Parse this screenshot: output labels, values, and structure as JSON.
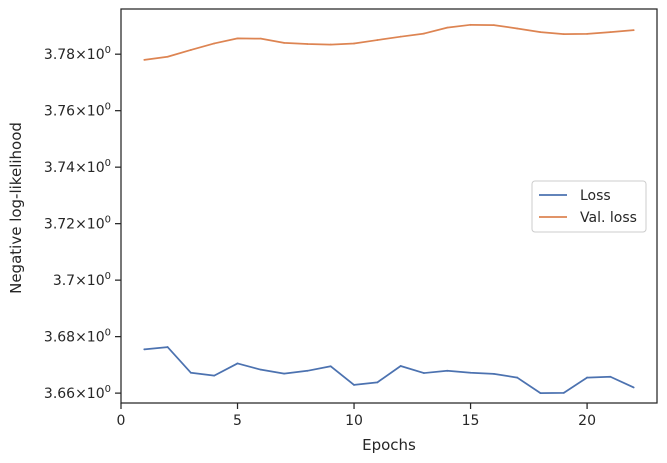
{
  "chart_data": {
    "type": "line",
    "xlabel": "Epochs",
    "ylabel": "Negative log-likelihood",
    "xlim": [
      0,
      23
    ],
    "ylim": [
      3.6565,
      3.796
    ],
    "x_ticks": [
      0,
      5,
      10,
      15,
      20
    ],
    "y_ticks": [
      {
        "value": 3.66,
        "mantissa": "3.66"
      },
      {
        "value": 3.68,
        "mantissa": "3.68"
      },
      {
        "value": 3.7,
        "mantissa": "3.7"
      },
      {
        "value": 3.72,
        "mantissa": "3.72"
      },
      {
        "value": 3.74,
        "mantissa": "3.74"
      },
      {
        "value": 3.76,
        "mantissa": "3.76"
      },
      {
        "value": 3.78,
        "mantissa": "3.78"
      }
    ],
    "y_tick_suffix": "×10",
    "y_tick_exponent": "0",
    "grid": false,
    "legend_position": "center-right",
    "x": [
      1,
      2,
      3,
      4,
      5,
      6,
      7,
      8,
      9,
      10,
      11,
      12,
      13,
      14,
      15,
      16,
      17,
      18,
      19,
      20,
      21,
      22
    ],
    "series": [
      {
        "name": "Loss",
        "color": "#4c72b0",
        "values": [
          3.6755,
          3.6763,
          3.6672,
          3.6662,
          3.6705,
          3.6683,
          3.6669,
          3.6679,
          3.6695,
          3.6629,
          3.6638,
          3.6696,
          3.6671,
          3.6679,
          3.6672,
          3.6668,
          3.6655,
          3.66,
          3.6601,
          3.6655,
          3.6658,
          3.662
        ]
      },
      {
        "name": "Val. loss",
        "color": "#dd8452",
        "values": [
          3.778,
          3.7791,
          3.7815,
          3.7838,
          3.7856,
          3.7855,
          3.784,
          3.7836,
          3.7834,
          3.7838,
          3.785,
          3.7862,
          3.7873,
          3.7894,
          3.7904,
          3.7903,
          3.7891,
          3.7878,
          3.7871,
          3.7872,
          3.7878,
          3.7885
        ]
      }
    ]
  }
}
